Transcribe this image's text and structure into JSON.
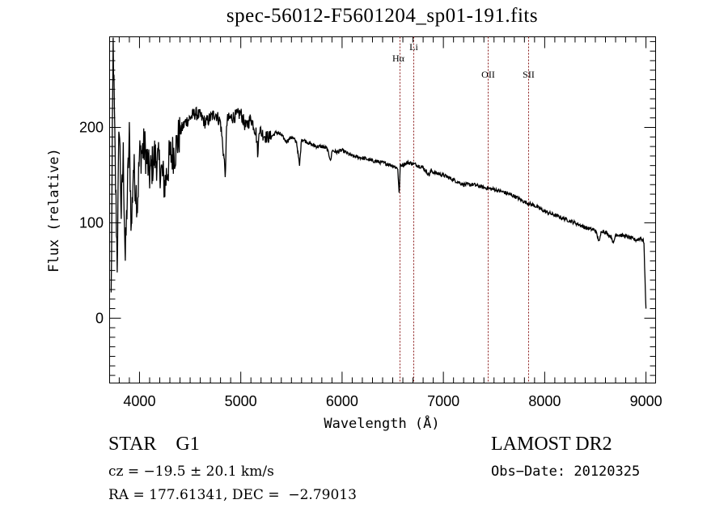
{
  "chart_data": {
    "type": "line",
    "title": "spec-56012-F5601204_sp01-191.fits",
    "xlabel": "Wavelength (Å)",
    "ylabel": "Flux (relative)",
    "xlim": [
      3705,
      9095
    ],
    "ylim": [
      -68,
      295
    ],
    "xticks": [
      4000,
      5000,
      6000,
      7000,
      8000,
      9000
    ],
    "xtick_labels": [
      "4000",
      "5000",
      "6000",
      "7000",
      "8000",
      "9000"
    ],
    "yticks": [
      0,
      100,
      200
    ],
    "ytick_labels": [
      "0",
      "100",
      "200"
    ],
    "grid": false,
    "series": [
      {
        "name": "flux",
        "x": [
          3720,
          3740,
          3760,
          3780,
          3800,
          3820,
          3840,
          3860,
          3880,
          3900,
          3920,
          3940,
          3960,
          3980,
          4000,
          4050,
          4100,
          4150,
          4200,
          4250,
          4300,
          4350,
          4400,
          4450,
          4500,
          4550,
          4600,
          4650,
          4700,
          4750,
          4800,
          4850,
          4860,
          4870,
          4900,
          4950,
          5000,
          5050,
          5100,
          5150,
          5170,
          5180,
          5200,
          5250,
          5300,
          5350,
          5400,
          5450,
          5500,
          5550,
          5580,
          5600,
          5650,
          5700,
          5750,
          5800,
          5850,
          5890,
          5900,
          5950,
          6000,
          6100,
          6200,
          6300,
          6400,
          6500,
          6550,
          6563,
          6575,
          6650,
          6700,
          6800,
          6860,
          6880,
          6900,
          7000,
          7100,
          7200,
          7300,
          7400,
          7500,
          7600,
          7650,
          7700,
          7800,
          7900,
          8000,
          8100,
          8200,
          8300,
          8400,
          8500,
          8540,
          8560,
          8600,
          8660,
          8680,
          8700,
          8800,
          8900,
          8950,
          8980,
          8990,
          9000
        ],
        "values": [
          20,
          290,
          160,
          60,
          210,
          110,
          170,
          60,
          130,
          190,
          90,
          160,
          140,
          120,
          170,
          180,
          150,
          170,
          160,
          140,
          170,
          175,
          195,
          205,
          210,
          215,
          212,
          205,
          210,
          215,
          205,
          150,
          205,
          208,
          210,
          212,
          215,
          200,
          210,
          195,
          170,
          200,
          195,
          190,
          190,
          195,
          192,
          185,
          190,
          185,
          160,
          188,
          185,
          182,
          180,
          180,
          178,
          165,
          176,
          174,
          176,
          170,
          168,
          165,
          163,
          160,
          157,
          130,
          160,
          163,
          162,
          158,
          150,
          155,
          153,
          150,
          145,
          140,
          140,
          137,
          135,
          132,
          130,
          128,
          122,
          118,
          112,
          108,
          104,
          100,
          95,
          92,
          80,
          92,
          90,
          85,
          78,
          88,
          86,
          82,
          84,
          80,
          40,
          10
        ]
      }
    ],
    "annotations": [
      {
        "label": "Hα",
        "x": 6568
      },
      {
        "label": "Li",
        "x": 6705
      },
      {
        "label": "OII",
        "x": 7440
      },
      {
        "label": "SII",
        "x": 7838
      }
    ],
    "annotation_color": "#8b1a1a"
  },
  "info": {
    "object_class": "STAR    G1",
    "cz": "cz = −19.5 ± 20.1 km/s",
    "radec": "RA = 177.61341, DEC =  −2.79013",
    "survey": "LAMOST DR2",
    "obs_date": "Obs−Date: 20120325"
  }
}
